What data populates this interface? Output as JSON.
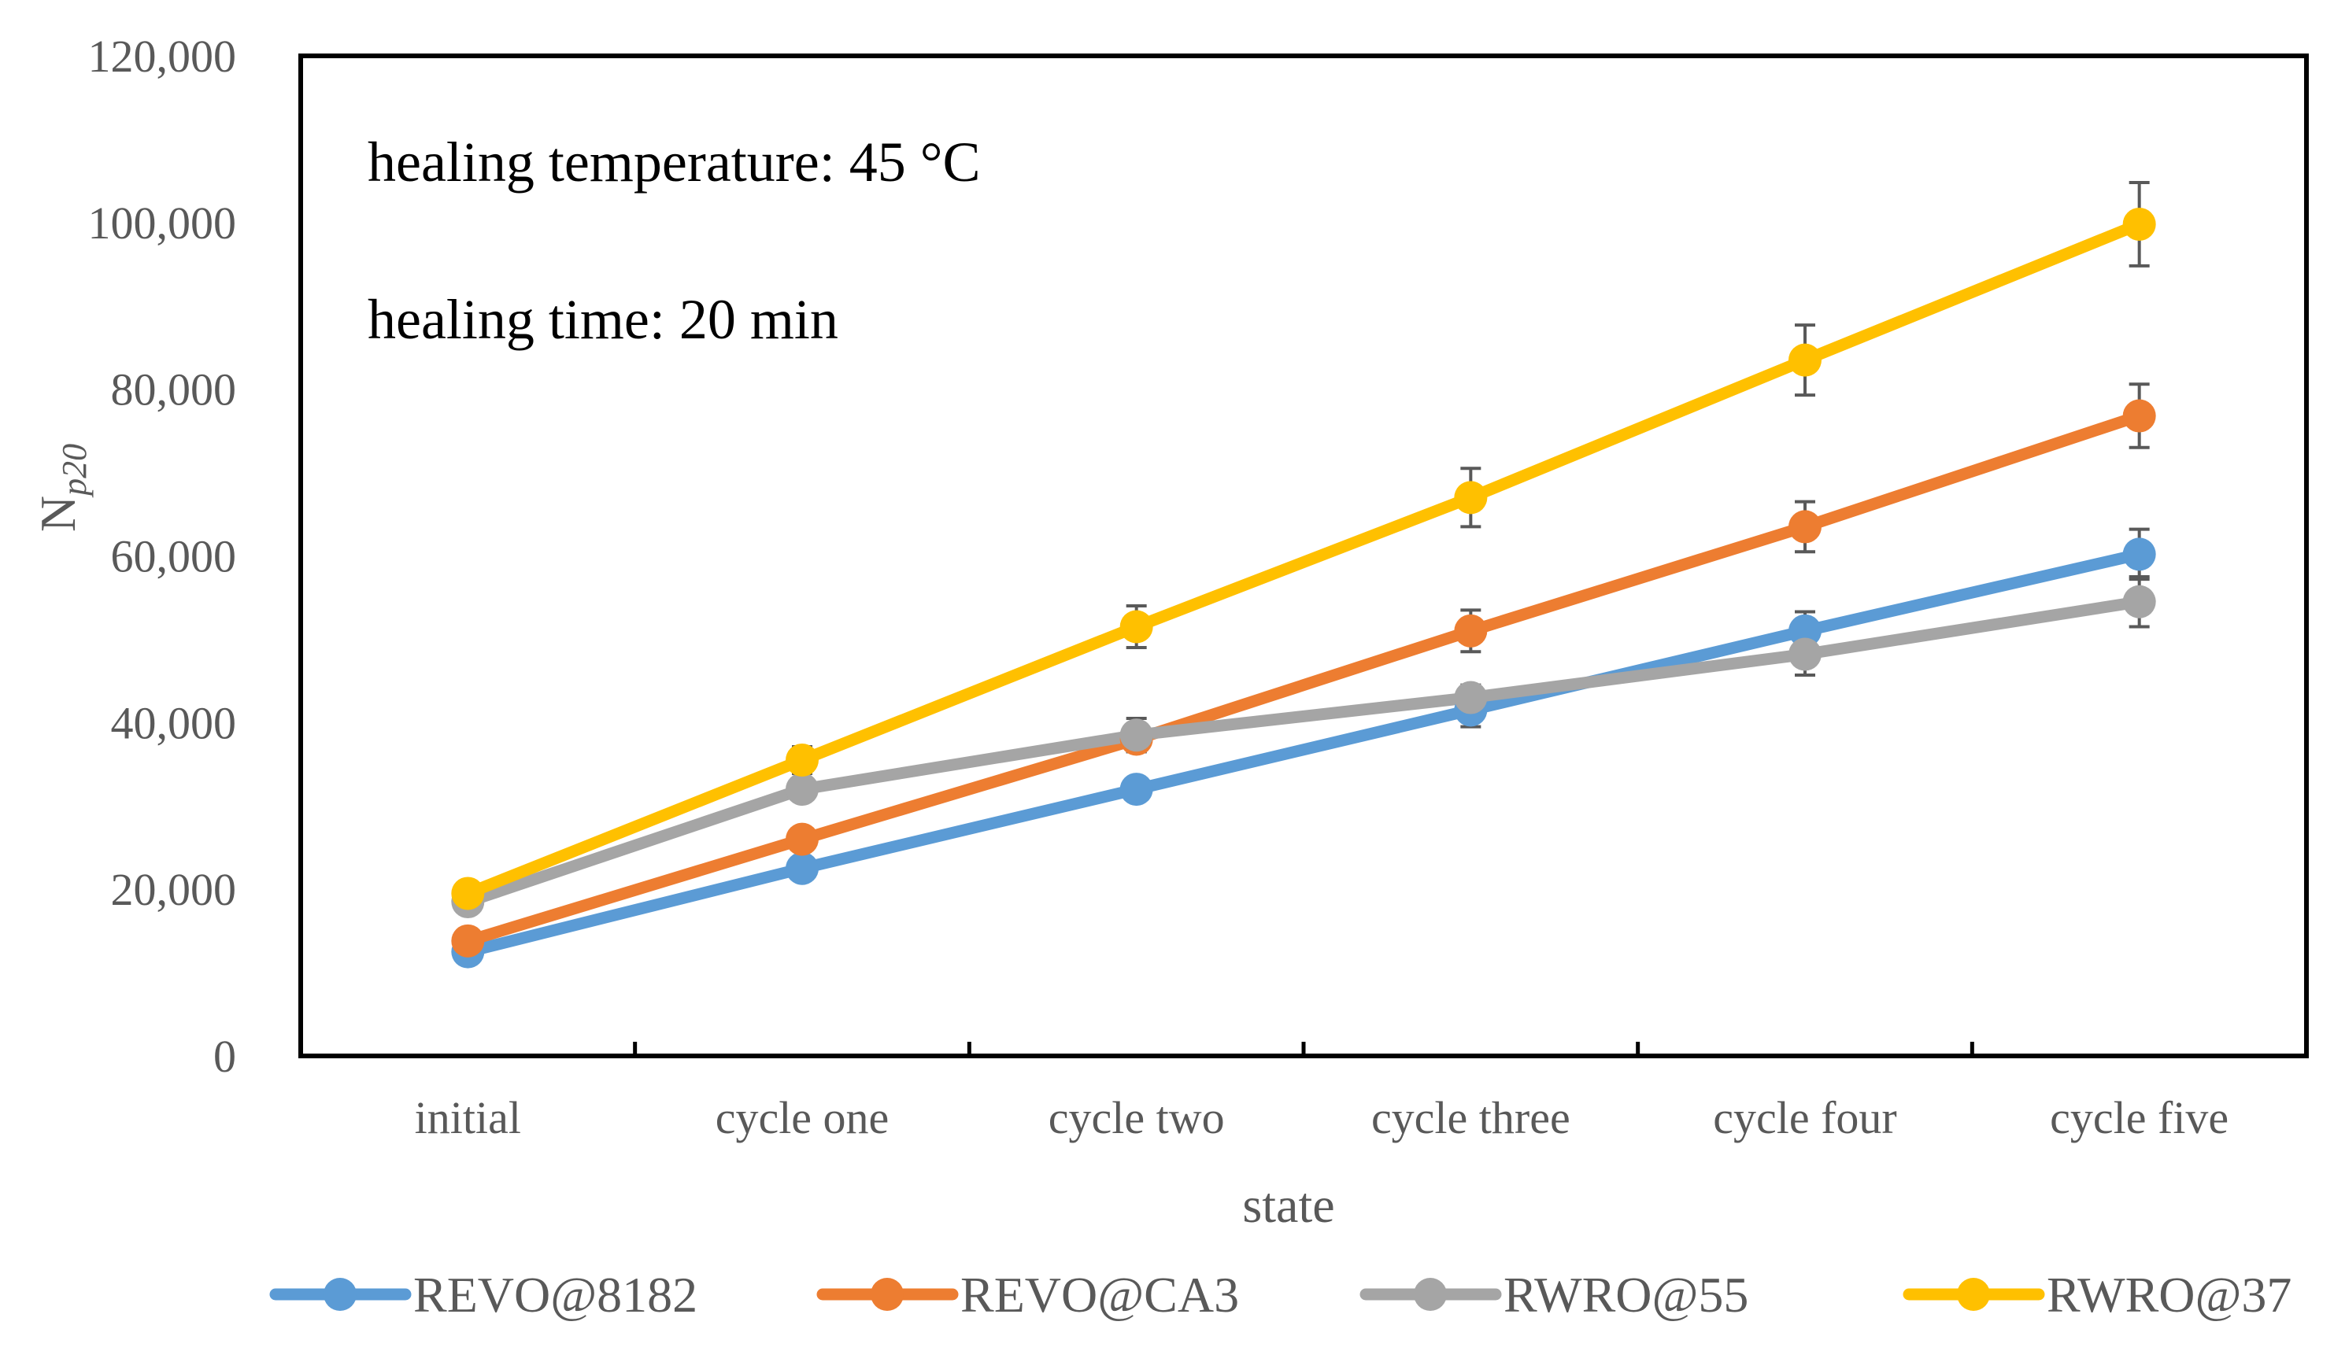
{
  "chart_data": {
    "type": "line",
    "title": "",
    "xlabel": "state",
    "ylabel_main": "N",
    "ylabel_sub": "p20",
    "categories": [
      "initial",
      "cycle one",
      "cycle two",
      "cycle three",
      "cycle four",
      "cycle five"
    ],
    "ylim": [
      0,
      120000
    ],
    "yticks": [
      0,
      20000,
      40000,
      60000,
      80000,
      100000,
      120000
    ],
    "ytick_labels": [
      "0",
      "20,000",
      "40,000",
      "60,000",
      "80,000",
      "100,000",
      "120,000"
    ],
    "grid": false,
    "legend_position": "bottom",
    "annotations": [
      "healing temperature: 45 °C",
      "healing time: 20 min"
    ],
    "series": [
      {
        "name": "REVO@8182",
        "color": "#5B9BD5",
        "values": [
          12500,
          22500,
          32000,
          41500,
          51000,
          60200
        ],
        "errors": [
          800,
          1000,
          1200,
          2000,
          2300,
          3000
        ]
      },
      {
        "name": "REVO@CA3",
        "color": "#ED7D31",
        "values": [
          13800,
          26000,
          38000,
          51000,
          63500,
          76800
        ],
        "errors": [
          900,
          1100,
          1500,
          2500,
          3000,
          3800
        ]
      },
      {
        "name": "RWRO@55",
        "color": "#A5A5A5",
        "values": [
          18500,
          32000,
          38500,
          43000,
          48200,
          54500
        ],
        "errors": [
          800,
          1200,
          2000,
          1500,
          2500,
          3000
        ]
      },
      {
        "name": "RWRO@37",
        "color": "#FFC000",
        "values": [
          19500,
          35500,
          51500,
          67000,
          83500,
          99800
        ],
        "errors": [
          900,
          1600,
          2500,
          3500,
          4200,
          5000
        ]
      }
    ]
  }
}
